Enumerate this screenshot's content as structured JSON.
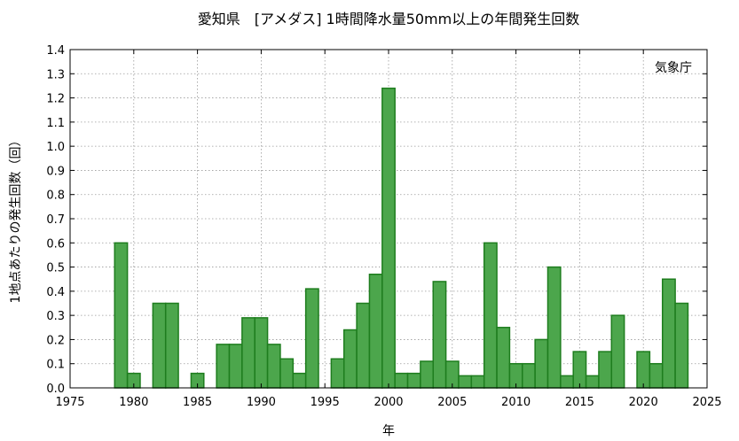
{
  "chart_data": {
    "type": "bar",
    "title": "愛知県　[アメダス] 1時間降水量50mm以上の年間発生回数",
    "xlabel": "年",
    "ylabel": "1地点あたりの発生回数（回）",
    "source_label": "気象庁",
    "xlim": [
      1975,
      2025
    ],
    "ylim": [
      0,
      1.4
    ],
    "x_ticks": [
      "1975",
      "1980",
      "1985",
      "1990",
      "1995",
      "2000",
      "2005",
      "2010",
      "2015",
      "2020",
      "2025"
    ],
    "y_ticks": [
      "0.0",
      "0.1",
      "0.2",
      "0.3",
      "0.4",
      "0.5",
      "0.6",
      "0.7",
      "0.8",
      "0.9",
      "1.0",
      "1.1",
      "1.2",
      "1.3",
      "1.4"
    ],
    "grid": true,
    "bar_color": "#4ca64c",
    "bar_edge_color": "#1e7d1e",
    "years": [
      1979,
      1980,
      1981,
      1982,
      1983,
      1984,
      1985,
      1986,
      1987,
      1988,
      1989,
      1990,
      1991,
      1992,
      1993,
      1994,
      1995,
      1996,
      1997,
      1998,
      1999,
      2000,
      2001,
      2002,
      2003,
      2004,
      2005,
      2006,
      2007,
      2008,
      2009,
      2010,
      2011,
      2012,
      2013,
      2014,
      2015,
      2016,
      2017,
      2018,
      2019,
      2020,
      2021,
      2022,
      2023
    ],
    "values": [
      0.6,
      0.06,
      0.0,
      0.35,
      0.35,
      0.0,
      0.06,
      0.0,
      0.18,
      0.18,
      0.29,
      0.29,
      0.18,
      0.12,
      0.06,
      0.41,
      0.0,
      0.12,
      0.24,
      0.35,
      0.47,
      1.24,
      0.06,
      0.06,
      0.11,
      0.44,
      0.11,
      0.05,
      0.05,
      0.6,
      0.25,
      0.1,
      0.1,
      0.2,
      0.5,
      0.05,
      0.15,
      0.05,
      0.15,
      0.3,
      0.0,
      0.15,
      0.1,
      0.45,
      0.35
    ]
  }
}
